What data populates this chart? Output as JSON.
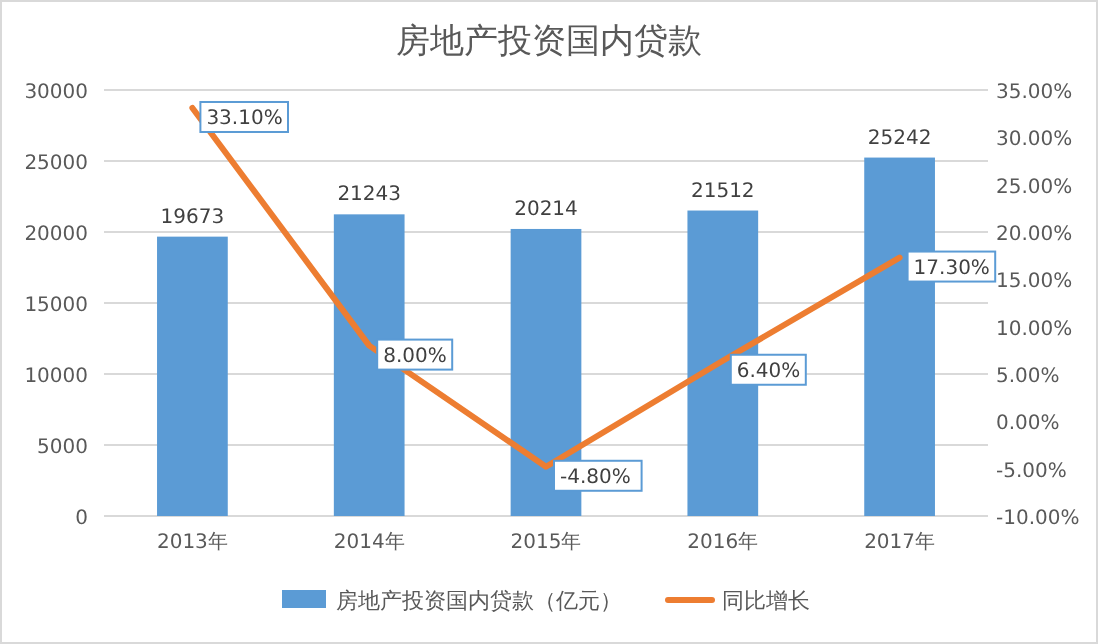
{
  "chart_data": {
    "type": "bar",
    "title": "房地产投资国内贷款",
    "categories": [
      "2013年",
      "2014年",
      "2015年",
      "2016年",
      "2017年"
    ],
    "series": [
      {
        "name": "房地产投资国内贷款（亿元）",
        "color": "#5b9bd5",
        "values": [
          19673,
          21243,
          20214,
          21512,
          25242
        ],
        "value_labels": [
          "19673",
          "21243",
          "20214",
          "21512",
          "25242"
        ]
      },
      {
        "name": "同比增长",
        "type": "line",
        "axis": "y2",
        "color": "#ed7d31",
        "values": [
          33.1,
          8.0,
          -4.8,
          6.4,
          17.3
        ],
        "value_labels": [
          "33.10%",
          "8.00%",
          "-4.80%",
          "6.40%",
          "17.30%"
        ]
      }
    ],
    "ylim": [
      0,
      30000
    ],
    "yticks": [
      0,
      5000,
      10000,
      15000,
      20000,
      25000,
      30000
    ],
    "y2lim": [
      -10,
      35
    ],
    "y2ticks": [
      {
        "value": -10,
        "label": "-10.00%"
      },
      {
        "value": -5,
        "label": "-5.00%"
      },
      {
        "value": 0,
        "label": "0.00%"
      },
      {
        "value": 5,
        "label": "5.00%"
      },
      {
        "value": 10,
        "label": "10.00%"
      },
      {
        "value": 15,
        "label": "15.00%"
      },
      {
        "value": 20,
        "label": "20.00%"
      },
      {
        "value": 25,
        "label": "25.00%"
      },
      {
        "value": 30,
        "label": "30.00%"
      },
      {
        "value": 35,
        "label": "35.00%"
      }
    ],
    "grid": "y",
    "legend": "bottom",
    "marker": "none",
    "line_style": "solid"
  }
}
